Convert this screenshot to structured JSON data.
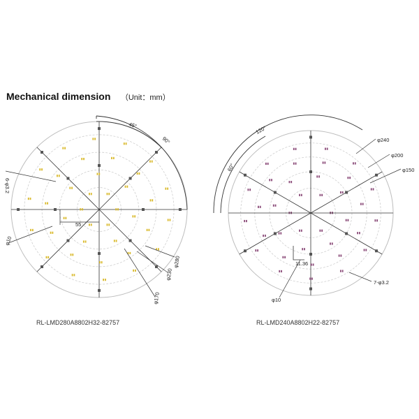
{
  "heading": {
    "title": "Mechanical dimension",
    "unit": "（Unit：mm）"
  },
  "left_board": {
    "model": "RL-LMD280A8802H32-82757",
    "angles": [
      "45°",
      "90°"
    ],
    "dims": [
      "6-φ3.2",
      "φ10",
      "φ280",
      "φ230",
      "φ170",
      "55"
    ],
    "led_color": "#d9b92a"
  },
  "right_board": {
    "model": "RL-LMD240A8802H22-82757",
    "angles": [
      "120°",
      "60°"
    ],
    "dims": [
      "φ240",
      "φ200",
      "φ150",
      "11.36",
      "7-φ3.2",
      "φ10"
    ],
    "led_color": "#8a4a78"
  },
  "colors": {
    "outline": "#bdbdbd",
    "construction": "#cfcfcf",
    "dim_line": "#333333",
    "pad": "#555555"
  }
}
